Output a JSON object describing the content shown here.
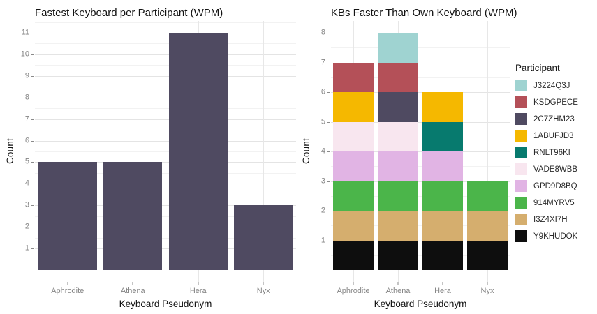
{
  "chart_data": [
    {
      "type": "bar",
      "title": "Fastest Keyboard per Participant (WPM)",
      "xlabel": "Keyboard Pseudonym",
      "ylabel": "Count",
      "categories": [
        "Aphrodite",
        "Athena",
        "Hera",
        "Nyx"
      ],
      "values": [
        5,
        5,
        11,
        3
      ],
      "y_ticks": [
        1,
        2,
        3,
        4,
        5,
        6,
        7,
        8,
        9,
        10,
        11
      ],
      "ylim": [
        0,
        11
      ],
      "y_display": [
        -0.55,
        11.55
      ],
      "bar_color": "#4f4a61",
      "grid": "on",
      "legend_position": "none"
    },
    {
      "type": "stacked-bar",
      "title": "KBs Faster Than Own Keyboard (WPM)",
      "xlabel": "Keyboard Pseudonym",
      "ylabel": "Count",
      "categories": [
        "Aphrodite",
        "Athena",
        "Hera",
        "Nyx"
      ],
      "totals": [
        7,
        8,
        6,
        3
      ],
      "segment_value": 1,
      "stacks": [
        [
          "Y9KHUDOK",
          "I3Z4XI7H",
          "914MYRV5",
          "GPD9D8BQ",
          "VADE8WBB",
          "1ABUFJD3",
          "KSDGPECE"
        ],
        [
          "Y9KHUDOK",
          "I3Z4XI7H",
          "914MYRV5",
          "GPD9D8BQ",
          "VADE8WBB",
          "2C7ZHM23",
          "KSDGPECE",
          "J3224Q3J"
        ],
        [
          "Y9KHUDOK",
          "I3Z4XI7H",
          "914MYRV5",
          "GPD9D8BQ",
          "RNLT96KI",
          "1ABUFJD3"
        ],
        [
          "Y9KHUDOK",
          "I3Z4XI7H",
          "914MYRV5"
        ]
      ],
      "y_ticks": [
        1,
        2,
        3,
        4,
        5,
        6,
        7,
        8
      ],
      "ylim": [
        0,
        8
      ],
      "y_display": [
        -0.4,
        8.4
      ],
      "grid": "on",
      "legend_position": "right",
      "legend": {
        "title": "Participant",
        "entries": [
          {
            "label": "J3224Q3J",
            "color": "#9fd3d1"
          },
          {
            "label": "KSDGPECE",
            "color": "#b45058"
          },
          {
            "label": "2C7ZHM23",
            "color": "#4f4a61"
          },
          {
            "label": "1ABUFJD3",
            "color": "#f5b800"
          },
          {
            "label": "RNLT96KI",
            "color": "#077a6e"
          },
          {
            "label": "VADE8WBB",
            "color": "#f8e6ef"
          },
          {
            "label": "GPD9D8BQ",
            "color": "#e1b4e4"
          },
          {
            "label": "914MYRV5",
            "color": "#4bb54a"
          },
          {
            "label": "I3Z4XI7H",
            "color": "#d5ae6e"
          },
          {
            "label": "Y9KHUDOK",
            "color": "#0e0e0e"
          }
        ]
      }
    }
  ],
  "style": {
    "background": "#ffffff",
    "grid_major_color": "#e4e4e4",
    "grid_minor_color": "#f2f2f2",
    "tick_color": "#8a8a8a",
    "tick_label_color": "#848484",
    "text_color": "#131313"
  }
}
